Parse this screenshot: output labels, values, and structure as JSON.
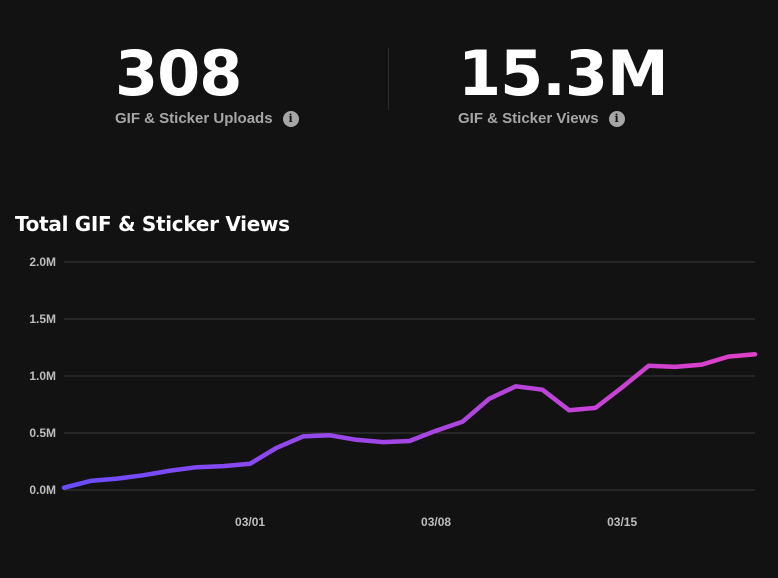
{
  "stats": {
    "uploads": {
      "value": "308",
      "label": "GIF & Sticker Uploads",
      "info_icon": "info-icon"
    },
    "views": {
      "value": "15.3M",
      "label": "GIF & Sticker Views",
      "info_icon": "info-icon"
    }
  },
  "colors": {
    "background": "#121212",
    "line_start": "#6a4cff",
    "line_end": "#e040c8",
    "grid": "#3a3a3a"
  },
  "chart_data": {
    "type": "line",
    "title": "Total GIF & Sticker Views",
    "xlabel": "",
    "ylabel": "",
    "ylim": [
      0,
      2000000
    ],
    "y_ticks": [
      {
        "value": 0,
        "label": "0.0M"
      },
      {
        "value": 500000,
        "label": "0.5M"
      },
      {
        "value": 1000000,
        "label": "1.0M"
      },
      {
        "value": 1500000,
        "label": "1.5M"
      },
      {
        "value": 2000000,
        "label": "2.0M"
      }
    ],
    "x_ticks": [
      {
        "index": 7,
        "label": "03/01"
      },
      {
        "index": 14,
        "label": "03/08"
      },
      {
        "index": 21,
        "label": "03/15"
      }
    ],
    "grid": true,
    "series": [
      {
        "name": "Total GIF & Sticker Views",
        "values": [
          20000,
          80000,
          100000,
          130000,
          170000,
          200000,
          210000,
          230000,
          370000,
          470000,
          480000,
          440000,
          420000,
          430000,
          520000,
          600000,
          800000,
          910000,
          880000,
          700000,
          720000,
          900000,
          1090000,
          1080000,
          1100000,
          1170000,
          1190000
        ]
      }
    ]
  }
}
